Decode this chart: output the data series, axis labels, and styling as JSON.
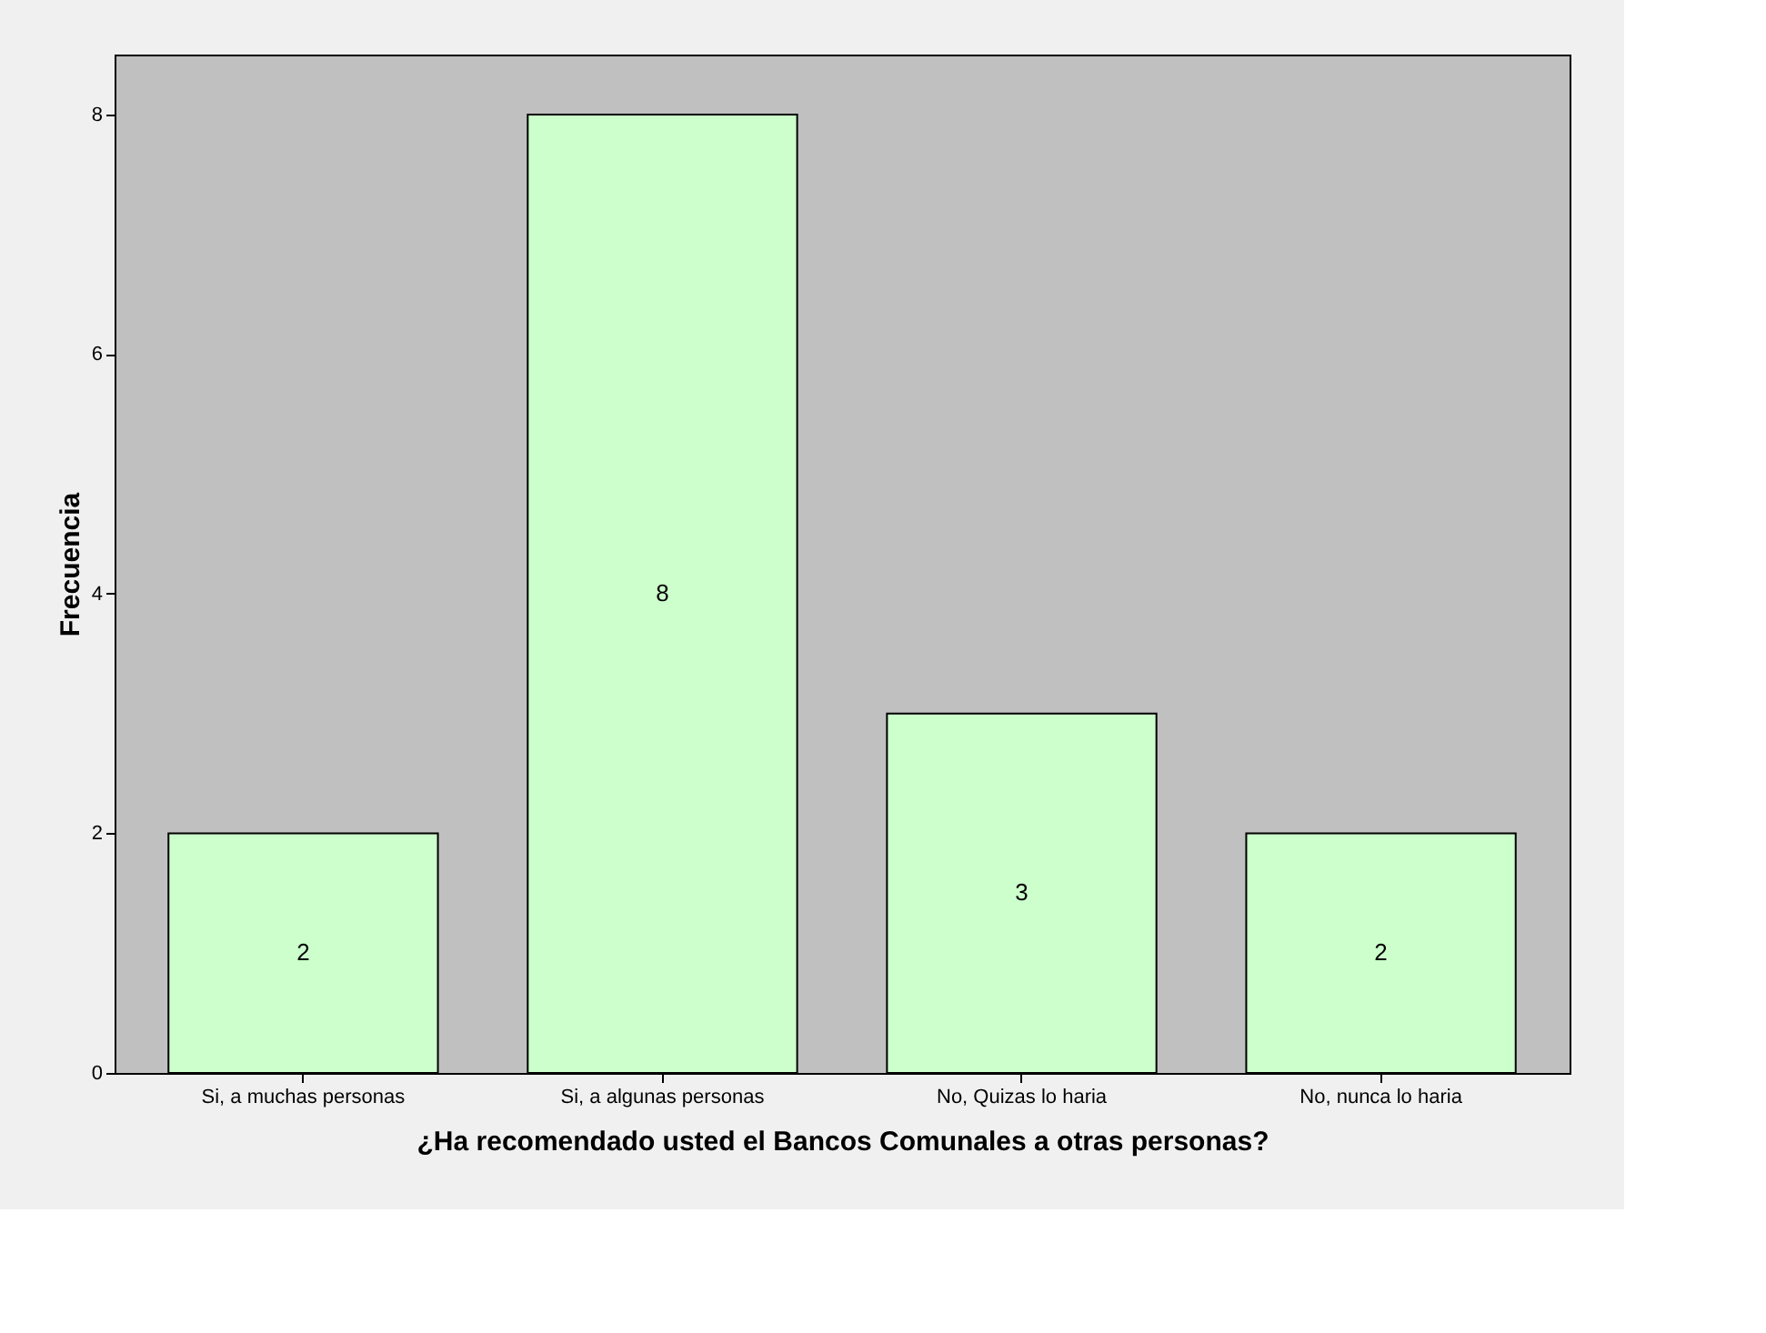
{
  "chart_data": {
    "type": "bar",
    "categories": [
      "Si, a muchas personas",
      "Si, a algunas personas",
      "No, Quizas lo haria",
      "No, nunca lo haria"
    ],
    "values": [
      2,
      8,
      3,
      2
    ],
    "color": "#ccffcc",
    "xlabel": "¿Ha recomendado usted el Bancos Comunales a otras personas?",
    "ylabel": "Frecuencia",
    "ylim": [
      0,
      8.5
    ],
    "yticks": [
      0,
      2,
      4,
      6,
      8
    ],
    "grid": false,
    "data_labels": true
  }
}
